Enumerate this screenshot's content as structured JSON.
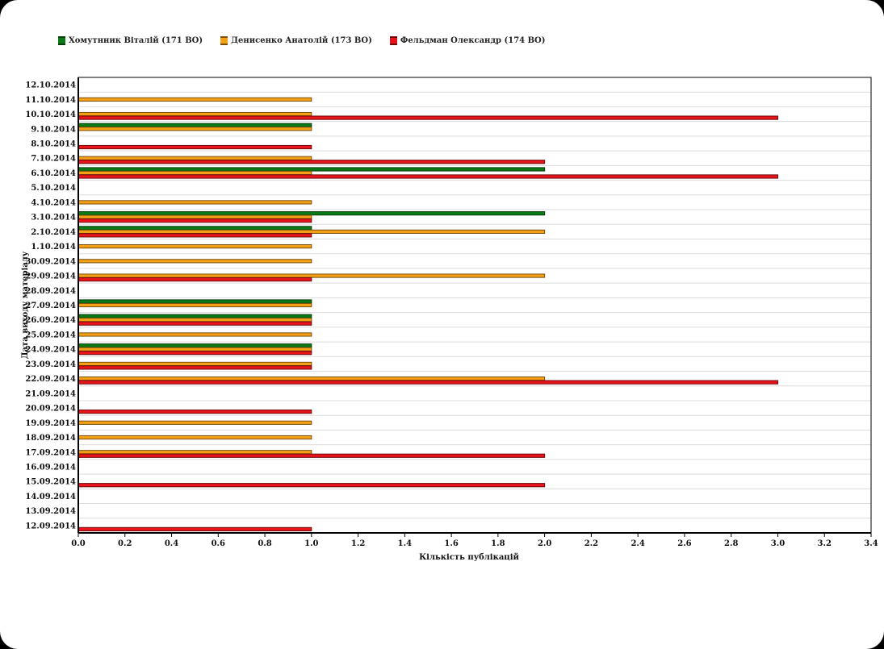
{
  "colors": {
    "series": [
      "#0a7a17",
      "#f4a017",
      "#e8141b"
    ],
    "series_dark": [
      "#053d0a",
      "#7a4f0a",
      "#700a0c"
    ],
    "grid": "#dcdcdc",
    "axis": "#000000"
  },
  "chart_data": {
    "type": "bar",
    "orientation": "horizontal",
    "title": "",
    "xlabel": "Кількість публікацій",
    "ylabel": "Дата виходу матеріалу",
    "xlim": [
      0,
      3.4
    ],
    "xticks": [
      "0.0",
      "0.2",
      "0.4",
      "0.6",
      "0.8",
      "1.0",
      "1.2",
      "1.4",
      "1.6",
      "1.8",
      "2.0",
      "2.2",
      "2.4",
      "2.6",
      "2.8",
      "3.0",
      "3.2",
      "3.4"
    ],
    "legend_position": "top-left",
    "categories": [
      "12.10.2014",
      "11.10.2014",
      "10.10.2014",
      "9.10.2014",
      "8.10.2014",
      "7.10.2014",
      "6.10.2014",
      "5.10.2014",
      "4.10.2014",
      "3.10.2014",
      "2.10.2014",
      "1.10.2014",
      "30.09.2014",
      "29.09.2014",
      "28.09.2014",
      "27.09.2014",
      "26.09.2014",
      "25.09.2014",
      "24.09.2014",
      "23.09.2014",
      "22.09.2014",
      "21.09.2014",
      "20.09.2014",
      "19.09.2014",
      "18.09.2014",
      "17.09.2014",
      "16.09.2014",
      "15.09.2014",
      "14.09.2014",
      "13.09.2014",
      "12.09.2014"
    ],
    "series": [
      {
        "name": "Хомутнник Віталій (171 ВО)",
        "values": [
          0,
          0,
          0,
          1,
          0,
          0,
          2,
          0,
          0,
          2,
          1,
          0,
          0,
          0,
          0,
          1,
          1,
          0,
          1,
          0,
          0,
          0,
          0,
          0,
          0,
          0,
          0,
          0,
          0,
          0,
          0
        ]
      },
      {
        "name": "Денисенко Анатолій (173 ВО)",
        "values": [
          0,
          1,
          1,
          1,
          0,
          1,
          1,
          0,
          1,
          1,
          2,
          1,
          1,
          2,
          0,
          1,
          1,
          1,
          1,
          1,
          2,
          0,
          0,
          1,
          1,
          1,
          0,
          0,
          0,
          0,
          0
        ]
      },
      {
        "name": "Фельдман Олександр (174 ВО)",
        "values": [
          0,
          0,
          3,
          0,
          1,
          2,
          3,
          0,
          0,
          1,
          1,
          0,
          0,
          1,
          0,
          0,
          1,
          0,
          1,
          1,
          3,
          0,
          1,
          0,
          0,
          2,
          0,
          2,
          0,
          0,
          1
        ]
      }
    ]
  }
}
